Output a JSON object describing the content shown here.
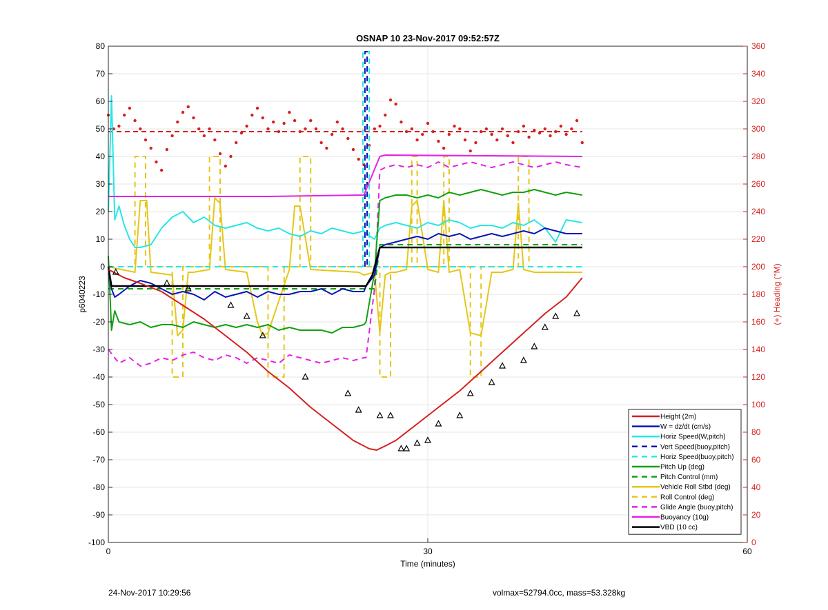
{
  "footer": {
    "left": "24-Nov-2017 10:29:56",
    "right": "volmax=52794.0cc, mass=53.328kg"
  },
  "chart_data": {
    "type": "line",
    "title": "OSNAP 10 23-Nov-2017 09:52:57Z",
    "xlabel": "Time (minutes)",
    "ylabel": "p6040223",
    "y2label": "(+) Heading (°M)",
    "xlim": [
      0,
      60
    ],
    "ylim": [
      -100,
      80
    ],
    "y2lim": [
      0,
      360
    ],
    "xticks": [
      0,
      30,
      60
    ],
    "yticks": [
      -100,
      -90,
      -80,
      -70,
      -60,
      -50,
      -40,
      -30,
      -20,
      -10,
      0,
      10,
      20,
      30,
      40,
      50,
      60,
      70,
      80
    ],
    "y2ticks": [
      0,
      20,
      40,
      60,
      80,
      100,
      120,
      140,
      160,
      180,
      200,
      220,
      240,
      260,
      280,
      300,
      320,
      340,
      360
    ],
    "grid": true,
    "legend_position": "bottom-right",
    "colors": {
      "red": "#d42020",
      "blue": "#0a14b4",
      "cyan": "#27e6e6",
      "green": "#10a010",
      "yellow": "#e6c619",
      "magenta": "#e620e6",
      "black": "#000000",
      "right_axis": "#d42020"
    },
    "legend": [
      {
        "label": "Height (2m)",
        "color": "#d42020",
        "dash": "solid"
      },
      {
        "label": "W = dz/dt (cm/s)",
        "color": "#0a14b4",
        "dash": "solid"
      },
      {
        "label": "Horiz Speed(W,pitch)",
        "color": "#27e6e6",
        "dash": "solid"
      },
      {
        "label": "Vert Speed(buoy,pitch)",
        "color": "#0a14b4",
        "dash": "dashed"
      },
      {
        "label": "Horiz Speed(buoy,pitch)",
        "color": "#27e6e6",
        "dash": "dashed"
      },
      {
        "label": "Pitch Up (deg)",
        "color": "#10a010",
        "dash": "solid"
      },
      {
        "label": "Pitch Control (mm)",
        "color": "#10a010",
        "dash": "dashed"
      },
      {
        "label": "Vehicle Roll Stbd (deg)",
        "color": "#e6c619",
        "dash": "solid"
      },
      {
        "label": "Roll Control (deg)",
        "color": "#e6c619",
        "dash": "dashed"
      },
      {
        "label": "Glide Angle (buoy,pitch)",
        "color": "#e620e6",
        "dash": "dashed"
      },
      {
        "label": "Buoyancy (10g)",
        "color": "#e620e6",
        "dash": "solid"
      },
      {
        "label": "VBD (10 cc)",
        "color": "#000000",
        "dash": "solid"
      }
    ],
    "series": [
      {
        "name": "Height (2m)",
        "color": "#d42020",
        "dash": "solid",
        "width": 2,
        "x": [
          0,
          1.5,
          3,
          5,
          7,
          9,
          11,
          13,
          15,
          17,
          19,
          21,
          23,
          24.5,
          25.2,
          26,
          27,
          29,
          31,
          33,
          35,
          37,
          39,
          41,
          43,
          44.5
        ],
        "y": [
          -1,
          -4,
          -6,
          -9,
          -14,
          -19,
          -25,
          -31,
          -38,
          -44,
          -51,
          -57,
          -63,
          -66,
          -66.5,
          -65,
          -63,
          -57,
          -51,
          -45,
          -38,
          -31,
          -24,
          -17,
          -11,
          -4
        ]
      },
      {
        "name": "Height markers",
        "color": "#000000",
        "marker": "triangle",
        "x": [
          0.7,
          5.5,
          7.5,
          11.5,
          13,
          14.5,
          18.5,
          22.5,
          23.5,
          25.5,
          26.5,
          27.5,
          28,
          29,
          30,
          31,
          33,
          34,
          36,
          37,
          39,
          40,
          41,
          42,
          44
        ],
        "y": [
          -2,
          -6,
          -8,
          -14,
          -18,
          -25,
          -40,
          -46,
          -52,
          -54,
          -54,
          -66,
          -66,
          -64,
          -63,
          -57,
          -54,
          -46,
          -42,
          -36,
          -34,
          -29,
          -22,
          -18,
          -17
        ]
      },
      {
        "name": "W = dz/dt (cm/s)",
        "color": "#0a14b4",
        "dash": "solid",
        "width": 2,
        "x": [
          0,
          0.3,
          0.6,
          1,
          2,
          3,
          4,
          5,
          6,
          7,
          8,
          9,
          10,
          11,
          12,
          13,
          14,
          15,
          16,
          17,
          18,
          19,
          20,
          21,
          22,
          23,
          24,
          24.2,
          25,
          25.5,
          26,
          27,
          28,
          29,
          30,
          31,
          32,
          33,
          34,
          35,
          36,
          37,
          38,
          39,
          40,
          41,
          42,
          43,
          44.5
        ],
        "y": [
          -1,
          -8,
          -11,
          -10,
          -7,
          -5,
          -6,
          -8,
          -10,
          -9,
          -10,
          -12,
          -9,
          -11,
          -10,
          -9,
          -11,
          -9,
          -10,
          -10,
          -9,
          -9,
          -8,
          -10,
          -8,
          -9,
          -9,
          -7,
          -3,
          7,
          8,
          9,
          10,
          11,
          10,
          12,
          11,
          12,
          10,
          11,
          12,
          11,
          12,
          13,
          12,
          14,
          13,
          12,
          12
        ]
      },
      {
        "name": "Horiz Speed(W,pitch)",
        "color": "#27e6e6",
        "dash": "solid",
        "width": 2,
        "x": [
          0,
          0.3,
          0.6,
          1,
          1.5,
          2,
          2.5,
          3,
          4,
          5,
          6,
          7,
          8,
          9,
          10,
          11,
          12,
          13,
          14,
          15,
          16,
          17,
          18,
          19,
          20,
          21,
          22,
          23,
          24,
          24.2,
          25,
          25.5,
          26,
          27,
          28,
          29,
          30,
          31,
          32,
          33,
          34,
          35,
          36,
          37,
          38,
          39,
          40,
          41,
          42,
          43,
          44.5
        ],
        "y": [
          20,
          62,
          17,
          22,
          15,
          10,
          7,
          7,
          8,
          14,
          18,
          20,
          16,
          18,
          15,
          14,
          15,
          16,
          14,
          13,
          14,
          12,
          11,
          13,
          12,
          14,
          13,
          12,
          13,
          12,
          10,
          14,
          15,
          16,
          15,
          14,
          16,
          15,
          17,
          16,
          14,
          15,
          15,
          14,
          16,
          15,
          17,
          14,
          9,
          17,
          16
        ]
      },
      {
        "name": "Vert Speed(buoy,pitch)",
        "color": "#0a14b4",
        "dash": "dashed",
        "width": 2,
        "x": [
          24.1,
          24.1,
          24.3,
          24.3
        ],
        "y": [
          0,
          78,
          78,
          0
        ]
      },
      {
        "name": "Horiz Speed(buoy,pitch)",
        "color": "#27e6e6",
        "dash": "dashed",
        "width": 2,
        "x": [
          0,
          23.9,
          23.9,
          24.5,
          24.5,
          44.5
        ],
        "y": [
          0,
          0,
          78,
          78,
          0,
          0
        ]
      },
      {
        "name": "Pitch Up (deg)",
        "color": "#10a010",
        "dash": "solid",
        "width": 2,
        "x": [
          0,
          0.3,
          0.6,
          1,
          2,
          3,
          4,
          5,
          6,
          7,
          8,
          9,
          10,
          11,
          12,
          13,
          14,
          15,
          16,
          17,
          18,
          19,
          20,
          21,
          22,
          23,
          24,
          24.2,
          25,
          25.5,
          26,
          27,
          28,
          29,
          30,
          31,
          32,
          33,
          34,
          35,
          36,
          37,
          38,
          39,
          40,
          41,
          42,
          43,
          44.5
        ],
        "y": [
          4,
          -23,
          -16,
          -20,
          -21,
          -20,
          -22,
          -21,
          -21,
          -22,
          -20,
          -21,
          -22,
          -21,
          -22,
          -21,
          -22,
          -21,
          -23,
          -22,
          -23,
          -23,
          -23,
          -24,
          -22,
          -22,
          -21,
          -20,
          -2,
          24,
          25,
          26,
          26,
          25,
          26,
          25,
          27,
          26,
          27,
          28,
          27,
          26,
          27,
          27,
          28,
          27,
          26,
          27,
          26
        ]
      },
      {
        "name": "Pitch Control (mm)",
        "color": "#10a010",
        "dash": "dashed",
        "width": 2,
        "x": [
          0,
          25,
          25.5,
          44.5
        ],
        "y": [
          -8,
          -8,
          8,
          8
        ]
      },
      {
        "name": "Vehicle Roll Stbd (deg)",
        "color": "#e6c619",
        "dash": "solid",
        "width": 2,
        "x": [
          0,
          2.5,
          3,
          3.6,
          4,
          6,
          6.5,
          7,
          7.5,
          8,
          9.5,
          10,
          10.5,
          11,
          13,
          14,
          14.5,
          15,
          17,
          17.5,
          18,
          19,
          23.5,
          24,
          25,
          25.5,
          26,
          26.5,
          27,
          28,
          28.5,
          29,
          30,
          31,
          31.5,
          32,
          33,
          34,
          35,
          36,
          37,
          38,
          38.5,
          39,
          40,
          42,
          44.5
        ],
        "y": [
          0,
          -2,
          24,
          24,
          -2,
          -3,
          -25,
          -23,
          -2,
          -2,
          -1,
          25,
          23,
          -1,
          -2,
          -20,
          -25,
          -24,
          -1,
          22,
          22,
          -1,
          -2,
          -3,
          -2,
          -24,
          -3,
          -2,
          -2,
          -1,
          22,
          24,
          -1,
          -2,
          24,
          -2,
          -1,
          -24,
          -25,
          -2,
          -2,
          -1,
          23,
          -1,
          -2,
          -2,
          -2
        ]
      },
      {
        "name": "Roll Control (deg)",
        "color": "#e6c619",
        "dash": "dashed",
        "width": 2,
        "x": [
          0,
          2.5,
          2.5,
          3.5,
          3.5,
          6,
          6,
          7,
          7,
          9.5,
          9.5,
          10.5,
          10.5,
          15,
          15,
          16.5,
          16.5,
          18,
          18,
          19,
          19,
          25.5,
          25.5,
          26.5,
          26.5,
          28.5,
          28.5,
          29,
          29,
          31.5,
          31.5,
          32,
          32,
          34,
          34,
          35,
          35,
          38.5,
          38.5,
          39.5,
          39.5,
          44.5
        ],
        "y": [
          0,
          0,
          40,
          40,
          0,
          0,
          -40,
          -40,
          0,
          0,
          40,
          40,
          0,
          0,
          -40,
          -40,
          0,
          0,
          40,
          40,
          0,
          0,
          -40,
          -40,
          0,
          0,
          40,
          40,
          0,
          0,
          40,
          40,
          0,
          0,
          -40,
          -40,
          0,
          0,
          40,
          40,
          0,
          0
        ]
      },
      {
        "name": "Glide Angle (buoy,pitch)",
        "color": "#e620e6",
        "dash": "dashed",
        "width": 2,
        "x": [
          0,
          1,
          2,
          3,
          4,
          5,
          6,
          7,
          8,
          9,
          10,
          11,
          12,
          13,
          14,
          15,
          16,
          17,
          18,
          19,
          20,
          21,
          22,
          23,
          24,
          24.2,
          25,
          25.5,
          26,
          27,
          28,
          29,
          30,
          31,
          32,
          33,
          34,
          35,
          36,
          37,
          38,
          39,
          40,
          41,
          42,
          43,
          44.5
        ],
        "y": [
          -30,
          -35,
          -33,
          -36,
          -35,
          -33,
          -34,
          -32,
          -31,
          -33,
          -34,
          -32,
          -33,
          -35,
          -33,
          -34,
          -35,
          -32,
          -33,
          -34,
          -35,
          -34,
          -33,
          -34,
          -33,
          -33,
          -8,
          35,
          36,
          37,
          36,
          37,
          36,
          38,
          36,
          37,
          38,
          37,
          36,
          37,
          38,
          37,
          36,
          37,
          38,
          37,
          36
        ]
      },
      {
        "name": "Buoyancy (10g)",
        "color": "#e620e6",
        "dash": "solid",
        "width": 2,
        "x": [
          0,
          15,
          24,
          25.5,
          26,
          44.5
        ],
        "y": [
          25.5,
          25.5,
          26,
          40,
          40.5,
          40
        ]
      },
      {
        "name": "VBD (10 cc)",
        "color": "#000000",
        "dash": "solid",
        "width": 2.5,
        "x": [
          0,
          0.3,
          0.5,
          24.2,
          24.8,
          25.5,
          44.5
        ],
        "y": [
          0,
          -7,
          -7,
          -7,
          -3,
          7,
          7
        ]
      }
    ],
    "heading": {
      "name": "Heading",
      "axis": "y2",
      "color": "#d42020",
      "dashed_reference": 298,
      "x": [
        0,
        0.5,
        1,
        1.5,
        2,
        2.5,
        3,
        3.5,
        4,
        4.5,
        5,
        5.5,
        6,
        6.5,
        7,
        7.5,
        8,
        8.5,
        9,
        9.5,
        10,
        10.5,
        11,
        11.5,
        12,
        12.5,
        13,
        13.5,
        14,
        14.5,
        15,
        15.5,
        16,
        16.5,
        17,
        17.5,
        18,
        18.5,
        19,
        19.5,
        20,
        20.5,
        21,
        21.5,
        22,
        22.5,
        23,
        23.5,
        24,
        24.5,
        25,
        25.5,
        26,
        26.5,
        27,
        27.5,
        28,
        28.5,
        29,
        29.5,
        30,
        30.5,
        31,
        31.5,
        32,
        32.5,
        33,
        33.5,
        34,
        34.5,
        35,
        35.5,
        36,
        36.5,
        37,
        37.5,
        38,
        38.5,
        39,
        39.5,
        40,
        40.5,
        41,
        41.5,
        42,
        42.5,
        43,
        43.5,
        44,
        44.5
      ],
      "y": [
        310,
        300,
        302,
        310,
        315,
        306,
        300,
        292,
        286,
        276,
        270,
        285,
        295,
        305,
        312,
        316,
        308,
        300,
        295,
        300,
        292,
        282,
        273,
        280,
        290,
        297,
        302,
        310,
        315,
        308,
        300,
        305,
        298,
        304,
        312,
        306,
        298,
        300,
        306,
        300,
        290,
        286,
        296,
        305,
        300,
        293,
        285,
        278,
        274,
        288,
        300,
        302,
        310,
        321,
        318,
        305,
        298,
        300,
        292,
        296,
        304,
        298,
        291,
        286,
        296,
        302,
        300,
        292,
        284,
        290,
        298,
        300,
        296,
        292,
        300,
        295,
        290,
        298,
        302,
        294,
        299,
        297,
        300,
        295,
        298,
        302,
        296,
        300,
        306,
        290
      ]
    }
  }
}
